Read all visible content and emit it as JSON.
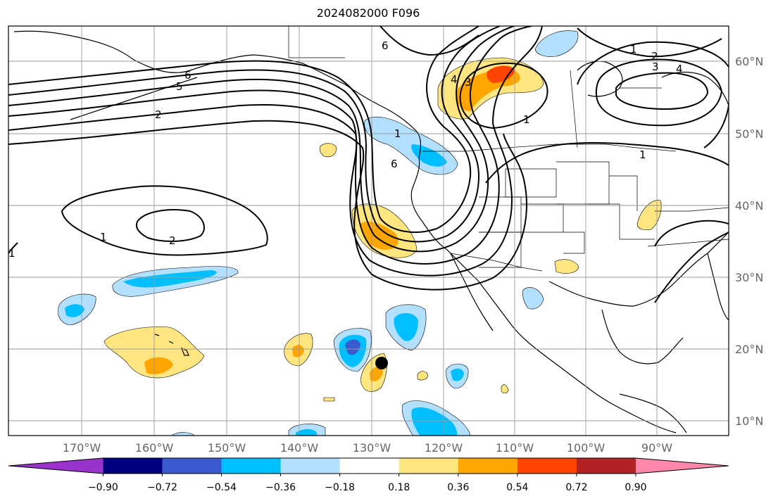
{
  "title": "2024082000 F096",
  "lon_ticks": [
    "170°W",
    "160°W",
    "150°W",
    "140°W",
    "130°W",
    "120°W",
    "110°W",
    "100°W",
    "90°W"
  ],
  "lat_ticks": [
    "60°N",
    "50°N",
    "40°N",
    "30°N",
    "20°N",
    "10°N"
  ],
  "colorbar": {
    "labels": [
      "−0.90",
      "−0.72",
      "−0.54",
      "−0.36",
      "−0.18",
      "0.18",
      "0.36",
      "0.54",
      "0.72",
      "0.90"
    ],
    "colors": [
      "#9933cc",
      "#000080",
      "#3a5bd0",
      "#00bfff",
      "#b3e0ff",
      "#ffffff",
      "#ffe680",
      "#ffa500",
      "#ff4500",
      "#b22222",
      "#ff88aa"
    ]
  },
  "contour_labels": [
    "6",
    "5",
    "2",
    "1",
    "2",
    "1",
    "6",
    "1",
    "4",
    "3",
    "1",
    "1",
    "2",
    "3",
    "4",
    "1",
    "6"
  ],
  "colors": {
    "light_blue": "#b3e0ff",
    "blue": "#00bfff",
    "mid_blue": "#3a5bd0",
    "yellow": "#ffe680",
    "orange": "#ffa500",
    "red_orange": "#ff4500",
    "grid": "#999999"
  }
}
